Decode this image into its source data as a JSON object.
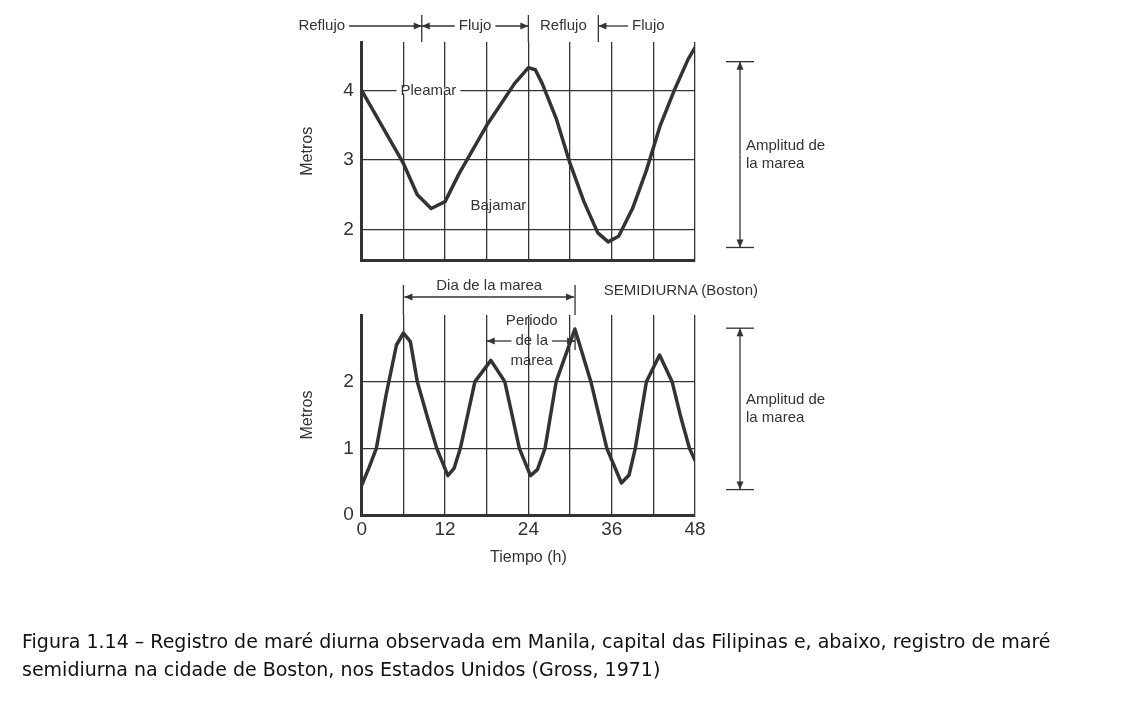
{
  "chart_data": [
    {
      "type": "line",
      "ylabel": "Metros",
      "tick_labels": "y",
      "grid": true,
      "x": [
        0,
        2,
        4,
        6,
        8,
        10,
        12,
        14,
        16,
        18,
        20,
        22,
        24,
        25,
        26,
        28,
        30,
        32,
        34,
        35.5,
        37,
        39,
        41,
        43,
        45,
        47,
        48
      ],
      "values": [
        4.0,
        3.65,
        3.3,
        2.95,
        2.5,
        2.3,
        2.4,
        2.8,
        3.15,
        3.5,
        3.8,
        4.1,
        4.33,
        4.3,
        4.1,
        3.6,
        2.95,
        2.4,
        1.95,
        1.82,
        1.9,
        2.3,
        2.85,
        3.5,
        4.0,
        4.45,
        4.62
      ],
      "color": "#333333",
      "xlim": [
        0,
        48
      ],
      "xticks": [
        0,
        {
          "value": 6,
          "label": null
        },
        12,
        {
          "value": 18,
          "label": null
        },
        24,
        {
          "value": 30,
          "label": null
        },
        36,
        {
          "value": 42,
          "label": null
        },
        48
      ],
      "ylim": [
        1.55,
        4.7
      ],
      "yticks": [
        2,
        3,
        4
      ],
      "annotations": [
        "Reflujo",
        "Flujo",
        "Reflujo",
        "Flujo",
        "Pleamar",
        "Bajamar",
        "Amplitud de la marea"
      ]
    },
    {
      "type": "line",
      "title": "SEMIDIURNA (Boston)",
      "xlabel": "Tiempo (h)",
      "ylabel": "Metros",
      "grid": true,
      "x": [
        0,
        1,
        2.1,
        3.5,
        5,
        6,
        7,
        8,
        9.5,
        10.8,
        12.4,
        13.3,
        14.2,
        16.3,
        18.6,
        20.6,
        22.7,
        24.3,
        25.3,
        26.4,
        28,
        30.7,
        33,
        35.3,
        37.4,
        38.5,
        39.4,
        41,
        42.9,
        44.7,
        46,
        47.2,
        48
      ],
      "values": [
        0.45,
        0.7,
        1.0,
        1.8,
        2.55,
        2.73,
        2.6,
        2.0,
        1.45,
        1.0,
        0.59,
        0.7,
        1.0,
        2.0,
        2.32,
        2.0,
        1.0,
        0.59,
        0.68,
        1.0,
        2.0,
        2.79,
        2.0,
        1.0,
        0.48,
        0.6,
        1.0,
        2.0,
        2.4,
        2.0,
        1.45,
        1.0,
        0.82
      ],
      "color": "#333333",
      "xlim": [
        0,
        48
      ],
      "xticks": [
        0,
        {
          "value": 6,
          "label": null
        },
        12,
        {
          "value": 18,
          "label": null
        },
        24,
        {
          "value": 30,
          "label": null
        },
        36,
        {
          "value": 42,
          "label": null
        },
        48
      ],
      "ylim": [
        0,
        3
      ],
      "yticks": [
        0,
        1,
        2
      ],
      "annotations": [
        "Dia de la marea",
        "Periodo de la marea",
        "Amplitud de la marea",
        "Figura 1.14 – Registro de maré diurna observada em Manila, capital das Filipinas e, abaixo, registro de maré semidiurna na cidade de Boston, nos Estados Unidos (Gross, 1971)"
      ]
    }
  ]
}
